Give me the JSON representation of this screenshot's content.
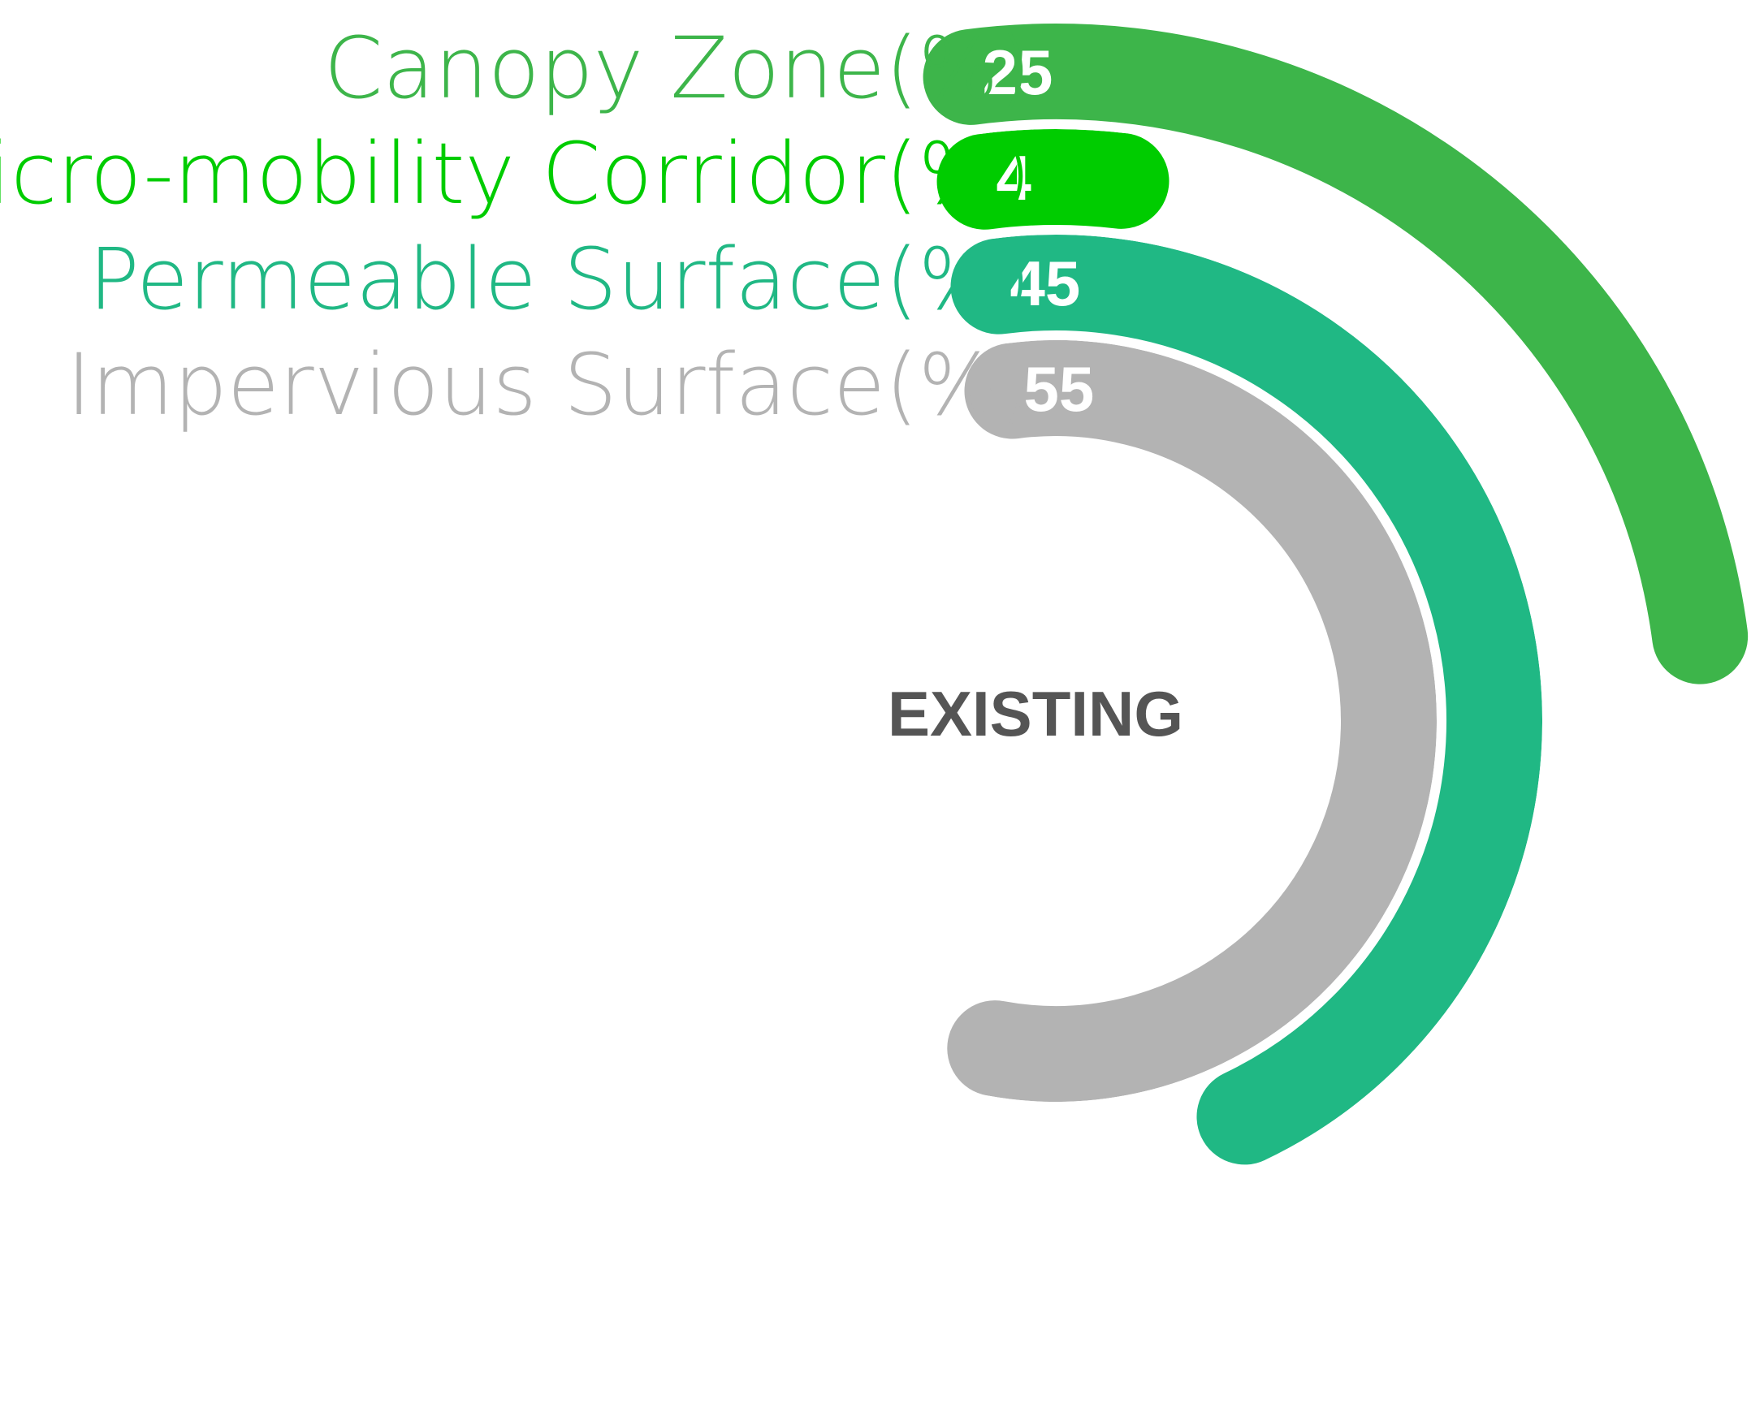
{
  "chart_data": {
    "type": "radial-bar",
    "title": "EXISTING",
    "max_value": 100,
    "series": [
      {
        "name": "Canopy Zone(%)",
        "value": 25,
        "color": "#3db54a"
      },
      {
        "name": "Micro-mobility Corridor(%)",
        "value": 4,
        "color": "#00cc00"
      },
      {
        "name": "Permeable Surface(%)",
        "value": 45,
        "color": "#20b884"
      },
      {
        "name": "Impervious Surface(%)",
        "value": 55,
        "color": "#b3b3b3"
      }
    ],
    "center_title_color": "#555555",
    "background": "#ffffff"
  }
}
